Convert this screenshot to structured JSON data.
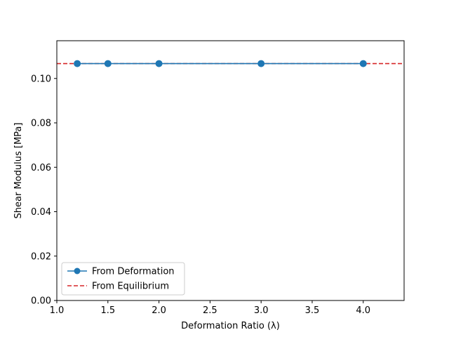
{
  "chart_data": {
    "type": "line",
    "title": "",
    "xlabel": "Deformation Ratio (λ)",
    "ylabel": "Shear Modulus [MPa]",
    "xlim": [
      1.0,
      4.4
    ],
    "ylim": [
      0.0,
      0.117
    ],
    "xticks": [
      1.0,
      1.5,
      2.0,
      2.5,
      3.0,
      3.5,
      4.0
    ],
    "xtick_labels": [
      "1.0",
      "1.5",
      "2.0",
      "2.5",
      "3.0",
      "3.5",
      "4.0"
    ],
    "yticks": [
      0.0,
      0.02,
      0.04,
      0.06,
      0.08,
      0.1
    ],
    "ytick_labels": [
      "0.00",
      "0.02",
      "0.04",
      "0.06",
      "0.08",
      "0.10"
    ],
    "grid": false,
    "legend_position": "lower-left",
    "series": [
      {
        "name": "From Deformation",
        "style": "solid-line-circle-markers",
        "color": "#1f77b4",
        "x": [
          1.2,
          1.5,
          2.0,
          3.0,
          4.0
        ],
        "y": [
          0.1067,
          0.1067,
          0.1067,
          0.1067,
          0.1067
        ]
      },
      {
        "name": "From Equilibrium",
        "style": "dashed-horizontal-line",
        "color": "#d62728",
        "y": 0.1067
      }
    ]
  }
}
